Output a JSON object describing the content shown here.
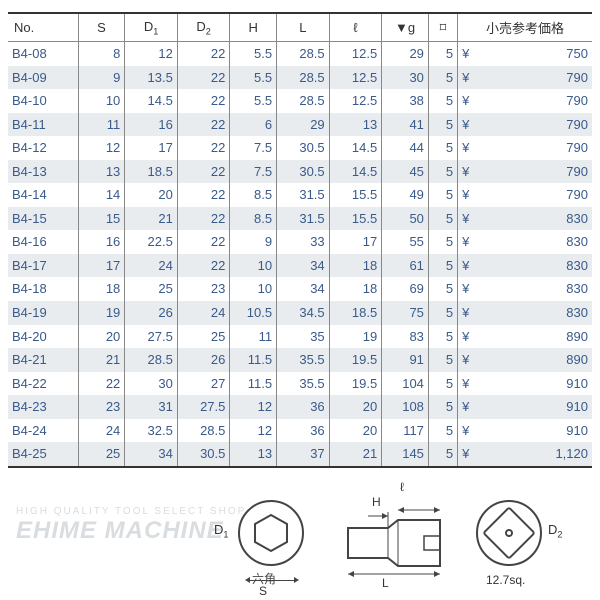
{
  "headers": {
    "no": "No.",
    "s": "S",
    "d1_html": "D<sub>1</sub>",
    "d2_html": "D<sub>2</sub>",
    "h": "H",
    "lb": "L",
    "ls": "ℓ",
    "g": "▼g",
    "pack": "⌑",
    "price": "小売参考価格"
  },
  "rows": [
    {
      "no": "B4-08",
      "s": "8",
      "d1": "12",
      "d2": "22",
      "h": "5.5",
      "lb": "28.5",
      "ls": "12.5",
      "g": "29",
      "pack": "5",
      "price": "750"
    },
    {
      "no": "B4-09",
      "s": "9",
      "d1": "13.5",
      "d2": "22",
      "h": "5.5",
      "lb": "28.5",
      "ls": "12.5",
      "g": "30",
      "pack": "5",
      "price": "790"
    },
    {
      "no": "B4-10",
      "s": "10",
      "d1": "14.5",
      "d2": "22",
      "h": "5.5",
      "lb": "28.5",
      "ls": "12.5",
      "g": "38",
      "pack": "5",
      "price": "790"
    },
    {
      "no": "B4-11",
      "s": "11",
      "d1": "16",
      "d2": "22",
      "h": "6",
      "lb": "29",
      "ls": "13",
      "g": "41",
      "pack": "5",
      "price": "790"
    },
    {
      "no": "B4-12",
      "s": "12",
      "d1": "17",
      "d2": "22",
      "h": "7.5",
      "lb": "30.5",
      "ls": "14.5",
      "g": "44",
      "pack": "5",
      "price": "790"
    },
    {
      "no": "B4-13",
      "s": "13",
      "d1": "18.5",
      "d2": "22",
      "h": "7.5",
      "lb": "30.5",
      "ls": "14.5",
      "g": "45",
      "pack": "5",
      "price": "790"
    },
    {
      "no": "B4-14",
      "s": "14",
      "d1": "20",
      "d2": "22",
      "h": "8.5",
      "lb": "31.5",
      "ls": "15.5",
      "g": "49",
      "pack": "5",
      "price": "790"
    },
    {
      "no": "B4-15",
      "s": "15",
      "d1": "21",
      "d2": "22",
      "h": "8.5",
      "lb": "31.5",
      "ls": "15.5",
      "g": "50",
      "pack": "5",
      "price": "830"
    },
    {
      "no": "B4-16",
      "s": "16",
      "d1": "22.5",
      "d2": "22",
      "h": "9",
      "lb": "33",
      "ls": "17",
      "g": "55",
      "pack": "5",
      "price": "830"
    },
    {
      "no": "B4-17",
      "s": "17",
      "d1": "24",
      "d2": "22",
      "h": "10",
      "lb": "34",
      "ls": "18",
      "g": "61",
      "pack": "5",
      "price": "830"
    },
    {
      "no": "B4-18",
      "s": "18",
      "d1": "25",
      "d2": "23",
      "h": "10",
      "lb": "34",
      "ls": "18",
      "g": "69",
      "pack": "5",
      "price": "830"
    },
    {
      "no": "B4-19",
      "s": "19",
      "d1": "26",
      "d2": "24",
      "h": "10.5",
      "lb": "34.5",
      "ls": "18.5",
      "g": "75",
      "pack": "5",
      "price": "830"
    },
    {
      "no": "B4-20",
      "s": "20",
      "d1": "27.5",
      "d2": "25",
      "h": "11",
      "lb": "35",
      "ls": "19",
      "g": "83",
      "pack": "5",
      "price": "890"
    },
    {
      "no": "B4-21",
      "s": "21",
      "d1": "28.5",
      "d2": "26",
      "h": "11.5",
      "lb": "35.5",
      "ls": "19.5",
      "g": "91",
      "pack": "5",
      "price": "890"
    },
    {
      "no": "B4-22",
      "s": "22",
      "d1": "30",
      "d2": "27",
      "h": "11.5",
      "lb": "35.5",
      "ls": "19.5",
      "g": "104",
      "pack": "5",
      "price": "910"
    },
    {
      "no": "B4-23",
      "s": "23",
      "d1": "31",
      "d2": "27.5",
      "h": "12",
      "lb": "36",
      "ls": "20",
      "g": "108",
      "pack": "5",
      "price": "910"
    },
    {
      "no": "B4-24",
      "s": "24",
      "d1": "32.5",
      "d2": "28.5",
      "h": "12",
      "lb": "36",
      "ls": "20",
      "g": "117",
      "pack": "5",
      "price": "910"
    },
    {
      "no": "B4-25",
      "s": "25",
      "d1": "34",
      "d2": "30.5",
      "h": "13",
      "lb": "37",
      "ls": "21",
      "g": "145",
      "pack": "5",
      "price": "1,120"
    }
  ],
  "currency": "¥",
  "diagram": {
    "hex_label": "六角",
    "s": "S",
    "d1_html": "D<sub>1</sub>",
    "d2_html": "D<sub>2</sub>",
    "h": "H",
    "l_big": "L",
    "l_small": "ℓ",
    "sq_label": "12.7sq."
  },
  "watermark": {
    "line1": "HIGH QUALITY TOOL SELECT SHOP",
    "line2": "EHIME MACHINE"
  },
  "style": {
    "row_alt_bg": "#e8ecef",
    "text_color": "#3a5a8a",
    "border_color": "#888",
    "heavy_border": "#333",
    "col_widths_pct": [
      12,
      8,
      9,
      9,
      8,
      9,
      9,
      8,
      5,
      23
    ]
  }
}
